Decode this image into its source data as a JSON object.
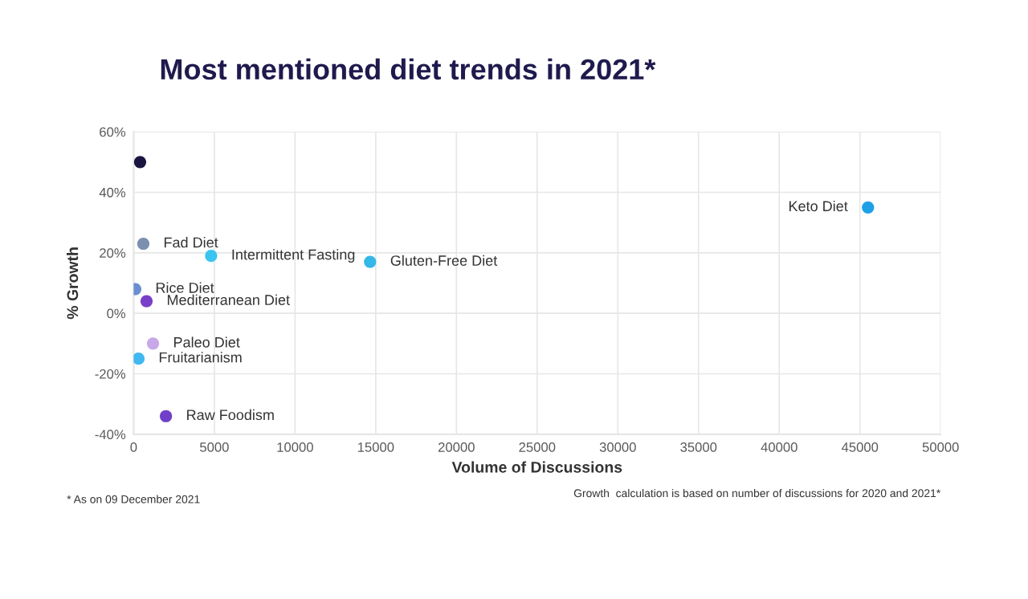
{
  "chart_data": {
    "type": "scatter",
    "title": "Most mentioned diet trends in 2021*",
    "xlabel": "Volume of Discussions",
    "ylabel": "% Growth",
    "x": [
      400,
      600,
      4800,
      14650,
      45500,
      100,
      800,
      1200,
      300,
      2000
    ],
    "values": [
      50,
      23,
      19,
      17,
      35,
      8,
      4,
      -10,
      -15,
      -34
    ],
    "colors": [
      "#1a1540",
      "#7b8fb0",
      "#3bc4f0",
      "#33b8e8",
      "#1ea0e6",
      "#6a8fd0",
      "#7a3fc8",
      "#c8a8e8",
      "#40b8f0",
      "#7040c8"
    ],
    "marker": "circle",
    "xlim": [
      0,
      50000
    ],
    "xticks": [
      0,
      5000,
      10000,
      15000,
      20000,
      25000,
      30000,
      35000,
      40000,
      45000,
      50000
    ],
    "ylim": [
      -40,
      60
    ],
    "yticks": [
      {
        "value": -40,
        "label": "-40%"
      },
      {
        "value": -20,
        "label": "-20%"
      },
      {
        "value": 0,
        "label": "0%"
      },
      {
        "value": 20,
        "label": "20%"
      },
      {
        "value": 40,
        "label": "40%"
      },
      {
        "value": 60,
        "label": "60%"
      }
    ],
    "grid": true,
    "annotations": [
      {
        "text": "Fad Diet",
        "x": 600,
        "y": 23
      },
      {
        "text": "Intermittent Fasting",
        "x": 4800,
        "y": 19
      },
      {
        "text": "Gluten-Free Diet",
        "x": 14650,
        "y": 17
      },
      {
        "text": "Keto Diet",
        "x": 45500,
        "y": 35
      },
      {
        "text": "Rice Diet",
        "x": 100,
        "y": 8
      },
      {
        "text": "Mediterranean Diet",
        "x": 800,
        "y": 4
      },
      {
        "text": "Paleo Diet",
        "x": 1200,
        "y": -10
      },
      {
        "text": "Fruitarianism",
        "x": 300,
        "y": -15
      },
      {
        "text": "Raw Foodism",
        "x": 2000,
        "y": -34
      },
      "* As on 09 December 2021",
      "Growth  calculation is based on number of discussions for 2020 and 2021*"
    ]
  }
}
